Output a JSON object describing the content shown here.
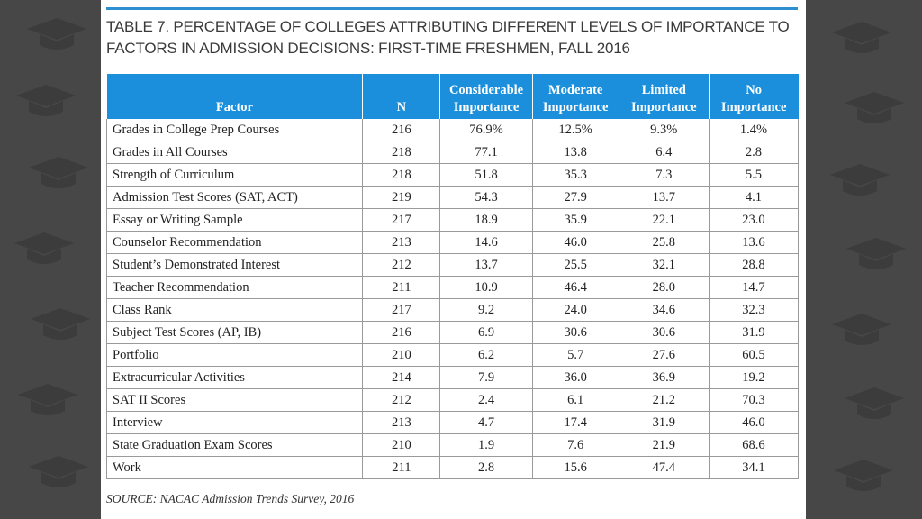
{
  "table": {
    "title": "TABLE 7. PERCENTAGE OF COLLEGES ATTRIBUTING DIFFERENT LEVELS OF IMPORTANCE TO FACTORS IN ADMISSION DECISIONS: FIRST-TIME FRESHMEN, FALL 2016",
    "headers": {
      "factor": "Factor",
      "n": "N",
      "considerable_1": "Considerable",
      "considerable_2": "Importance",
      "moderate_1": "Moderate",
      "moderate_2": "Importance",
      "limited_1": "Limited",
      "limited_2": "Importance",
      "no_1": "No",
      "no_2": "Importance"
    },
    "rows": [
      {
        "factor": "Grades in College Prep Courses",
        "n": "216",
        "considerable": "76.9%",
        "moderate": "12.5%",
        "limited": "9.3%",
        "no": "1.4%"
      },
      {
        "factor": "Grades in All Courses",
        "n": "218",
        "considerable": "77.1",
        "moderate": "13.8",
        "limited": "6.4",
        "no": "2.8"
      },
      {
        "factor": "Strength of Curriculum",
        "n": "218",
        "considerable": "51.8",
        "moderate": "35.3",
        "limited": "7.3",
        "no": "5.5"
      },
      {
        "factor": "Admission Test Scores (SAT, ACT)",
        "n": "219",
        "considerable": "54.3",
        "moderate": "27.9",
        "limited": "13.7",
        "no": "4.1"
      },
      {
        "factor": "Essay or Writing Sample",
        "n": "217",
        "considerable": "18.9",
        "moderate": "35.9",
        "limited": "22.1",
        "no": "23.0"
      },
      {
        "factor": "Counselor Recommendation",
        "n": "213",
        "considerable": "14.6",
        "moderate": "46.0",
        "limited": "25.8",
        "no": "13.6"
      },
      {
        "factor": "Student’s Demonstrated Interest",
        "n": "212",
        "considerable": "13.7",
        "moderate": "25.5",
        "limited": "32.1",
        "no": "28.8"
      },
      {
        "factor": "Teacher Recommendation",
        "n": "211",
        "considerable": "10.9",
        "moderate": "46.4",
        "limited": "28.0",
        "no": "14.7"
      },
      {
        "factor": "Class Rank",
        "n": "217",
        "considerable": "9.2",
        "moderate": "24.0",
        "limited": "34.6",
        "no": "32.3"
      },
      {
        "factor": "Subject Test Scores (AP, IB)",
        "n": "216",
        "considerable": "6.9",
        "moderate": "30.6",
        "limited": "30.6",
        "no": "31.9"
      },
      {
        "factor": "Portfolio",
        "n": "210",
        "considerable": "6.2",
        "moderate": "5.7",
        "limited": "27.6",
        "no": "60.5"
      },
      {
        "factor": "Extracurricular Activities",
        "n": "214",
        "considerable": "7.9",
        "moderate": "36.0",
        "limited": "36.9",
        "no": "19.2"
      },
      {
        "factor": "SAT II Scores",
        "n": "212",
        "considerable": "2.4",
        "moderate": "6.1",
        "limited": "21.2",
        "no": "70.3"
      },
      {
        "factor": "Interview",
        "n": "213",
        "considerable": "4.7",
        "moderate": "17.4",
        "limited": "31.9",
        "no": "46.0"
      },
      {
        "factor": "State Graduation Exam Scores",
        "n": "210",
        "considerable": "1.9",
        "moderate": "7.6",
        "limited": "21.9",
        "no": "68.6"
      },
      {
        "factor": "Work",
        "n": "211",
        "considerable": "2.8",
        "moderate": "15.6",
        "limited": "47.4",
        "no": "34.1"
      }
    ],
    "source": "SOURCE: NACAC Admission Trends Survey, 2016"
  },
  "theme": {
    "header_bg": "#1b8fdb",
    "rule_color": "#2d8fd0",
    "backdrop": "#474747",
    "backdrop_icon": "graduation-cap-icon"
  }
}
